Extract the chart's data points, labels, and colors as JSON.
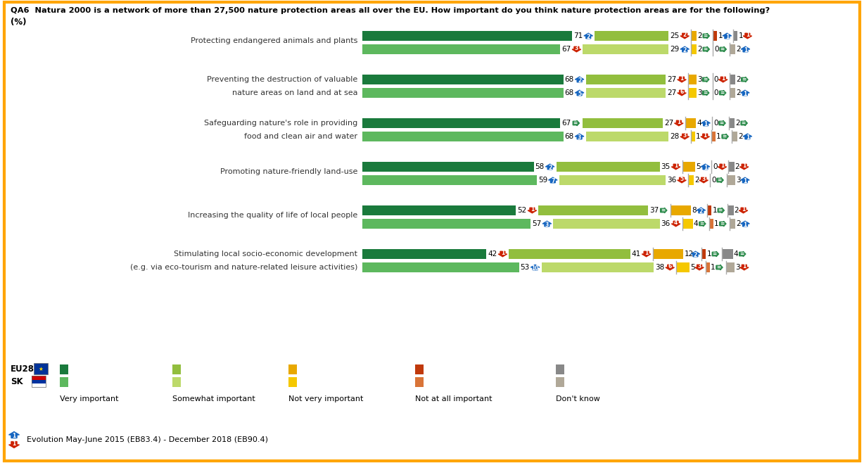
{
  "title_line1": "QA6  Natura 2000 is a network of more than 27,500 nature protection areas all over the EU. How important do you think nature protection areas are for the following?",
  "title_line2": "(%)",
  "border_color": "#FFA500",
  "bg_color": "#FFFFFF",
  "rows": [
    {
      "label": "Protecting endangered animals and plants",
      "label_lines": [
        "Protecting endangered animals and plants"
      ],
      "eu": {
        "very": 71,
        "somewhat": 25,
        "not_very": 2,
        "not_at_all": 1,
        "dk": 1,
        "evo_very": "+2",
        "evo_somewhat": "-2",
        "evo_not_very": "=",
        "evo_not_at_all": "+1",
        "evo_dk": "-1"
      },
      "sk": {
        "very": 67,
        "somewhat": 29,
        "not_very": 2,
        "not_at_all": 0,
        "dk": 2,
        "evo_very": "-3",
        "evo_somewhat": "+2",
        "evo_not_very": "=",
        "evo_not_at_all": "=",
        "evo_dk": "+1"
      }
    },
    {
      "label": "Preventing the destruction of valuable\nnature areas on land and at sea",
      "label_lines": [
        "Preventing the destruction of valuable",
        "nature areas on land and at sea"
      ],
      "eu": {
        "very": 68,
        "somewhat": 27,
        "not_very": 3,
        "not_at_all": 0,
        "dk": 2,
        "evo_very": "+2",
        "evo_somewhat": "-1",
        "evo_not_very": "=",
        "evo_not_at_all": "-1",
        "evo_dk": "="
      },
      "sk": {
        "very": 68,
        "somewhat": 27,
        "not_very": 3,
        "not_at_all": 0,
        "dk": 2,
        "evo_very": "+5",
        "evo_somewhat": "-6",
        "evo_not_very": "=",
        "evo_not_at_all": "=",
        "evo_dk": "+1"
      }
    },
    {
      "label": "Safeguarding nature's role in providing\nfood and clean air and water",
      "label_lines": [
        "Safeguarding nature's role in providing",
        "food and clean air and water"
      ],
      "eu": {
        "very": 67,
        "somewhat": 27,
        "not_very": 4,
        "not_at_all": 0,
        "dk": 2,
        "evo_very": "=",
        "evo_somewhat": "-1",
        "evo_not_very": "+1",
        "evo_not_at_all": "=",
        "evo_dk": "="
      },
      "sk": {
        "very": 68,
        "somewhat": 28,
        "not_very": 1,
        "not_at_all": 1,
        "dk": 2,
        "evo_very": "+3",
        "evo_somewhat": "-3",
        "evo_not_very": "-1",
        "evo_not_at_all": "=",
        "evo_dk": "+1"
      }
    },
    {
      "label": "Promoting nature-friendly land-use",
      "label_lines": [
        "Promoting nature-friendly land-use"
      ],
      "eu": {
        "very": 58,
        "somewhat": 35,
        "not_very": 5,
        "not_at_all": 0,
        "dk": 2,
        "evo_very": "+2",
        "evo_somewhat": "-1",
        "evo_not_very": "+1",
        "evo_not_at_all": "-1",
        "evo_dk": "-1"
      },
      "sk": {
        "very": 59,
        "somewhat": 36,
        "not_very": 2,
        "not_at_all": 0,
        "dk": 3,
        "evo_very": "+7",
        "evo_somewhat": "-5",
        "evo_not_very": "-3",
        "evo_not_at_all": "=",
        "evo_dk": "+1"
      }
    },
    {
      "label": "Increasing the quality of life of local people",
      "label_lines": [
        "Increasing the quality of life of local people"
      ],
      "eu": {
        "very": 52,
        "somewhat": 37,
        "not_very": 8,
        "not_at_all": 1,
        "dk": 2,
        "evo_very": "-1",
        "evo_somewhat": "=",
        "evo_not_very": "+2",
        "evo_not_at_all": "=",
        "evo_dk": "-1"
      },
      "sk": {
        "very": 57,
        "somewhat": 36,
        "not_very": 4,
        "not_at_all": 1,
        "dk": 2,
        "evo_very": "+3",
        "evo_somewhat": "-4",
        "evo_not_very": "=",
        "evo_not_at_all": "=",
        "evo_dk": "+1"
      }
    },
    {
      "label": "Stimulating local socio-economic development\n(e.g. via eco-tourism and nature-related leisure activities)",
      "label_lines": [
        "Stimulating local socio-economic development",
        "(e.g. via eco-tourism and nature-related leisure activities)"
      ],
      "eu": {
        "very": 42,
        "somewhat": 41,
        "not_very": 12,
        "not_at_all": 1,
        "dk": 4,
        "evo_very": "-1",
        "evo_somewhat": "-1",
        "evo_not_very": "+2",
        "evo_not_at_all": "=",
        "evo_dk": "="
      },
      "sk": {
        "very": 53,
        "somewhat": 38,
        "not_very": 5,
        "not_at_all": 1,
        "dk": 3,
        "evo_very": "+10",
        "evo_somewhat": "-6",
        "evo_not_very": "-3",
        "evo_not_at_all": "=",
        "evo_dk": "-1"
      }
    }
  ],
  "colors": {
    "eu_very": "#1a7a3c",
    "sk_very": "#5db85e",
    "eu_somewhat": "#92be3e",
    "sk_somewhat": "#bcd96a",
    "eu_not_very": "#e8a800",
    "sk_not_very": "#f5c800",
    "eu_not_at_all": "#c0390b",
    "sk_not_at_all": "#d97438",
    "eu_dk": "#888888",
    "sk_dk": "#b0a898",
    "evo_up": "#1565C0",
    "evo_down": "#cc2200",
    "evo_eq": "#2a8a4a"
  },
  "legend_labels": [
    "Very important",
    "Somewhat important",
    "Not very important",
    "Not at all important",
    "Don't know"
  ],
  "footer": "Evolution May-June 2015 (EB83.4) - December 2018 (EB90.4)"
}
